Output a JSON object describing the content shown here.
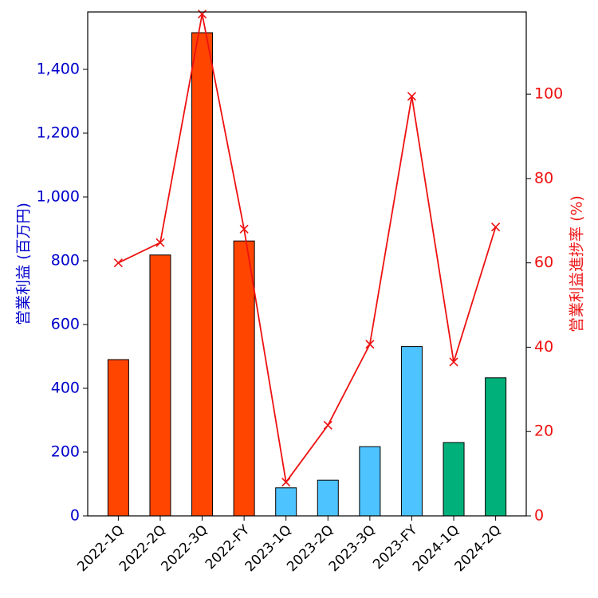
{
  "chart_data": {
    "type": "bar",
    "categories": [
      "2022-1Q",
      "2022-2Q",
      "2022-3Q",
      "2022-FY",
      "2023-1Q",
      "2023-2Q",
      "2023-3Q",
      "2023-FY",
      "2024-1Q",
      "2024-2Q"
    ],
    "bar_colors": [
      "#ff4500",
      "#ff4500",
      "#ff4500",
      "#ff4500",
      "#4dc3ff",
      "#4dc3ff",
      "#4dc3ff",
      "#4dc3ff",
      "#00b07a",
      "#00b07a"
    ],
    "series": [
      {
        "type": "bar",
        "axis": "left",
        "values": [
          490,
          818,
          1515,
          862,
          88,
          112,
          217,
          531,
          230,
          433
        ]
      },
      {
        "type": "line",
        "axis": "right",
        "color": "#ee1111",
        "marker": "x",
        "values": [
          60.0,
          64.8,
          119.0,
          68.0,
          8.0,
          21.5,
          40.7,
          99.5,
          36.5,
          68.5
        ]
      }
    ],
    "ylabel": "営業利益 (百万円)",
    "y2label": "営業利益進捗率 (%)",
    "ylim": [
      0,
      1580
    ],
    "y2lim": [
      0,
      119.5
    ],
    "yticks": [
      0,
      200,
      400,
      600,
      800,
      1000,
      1200,
      1400
    ],
    "yticklabels": [
      "0",
      "200",
      "400",
      "600",
      "800",
      "1,000",
      "1,200",
      "1,400"
    ],
    "y2ticks": [
      0,
      20,
      40,
      60,
      80,
      100
    ],
    "y2ticklabels": [
      "0",
      "20",
      "40",
      "60",
      "80",
      "100"
    ],
    "left_axis_color": "#0000cc",
    "right_axis_color": "#ee1111",
    "grid": false
  }
}
